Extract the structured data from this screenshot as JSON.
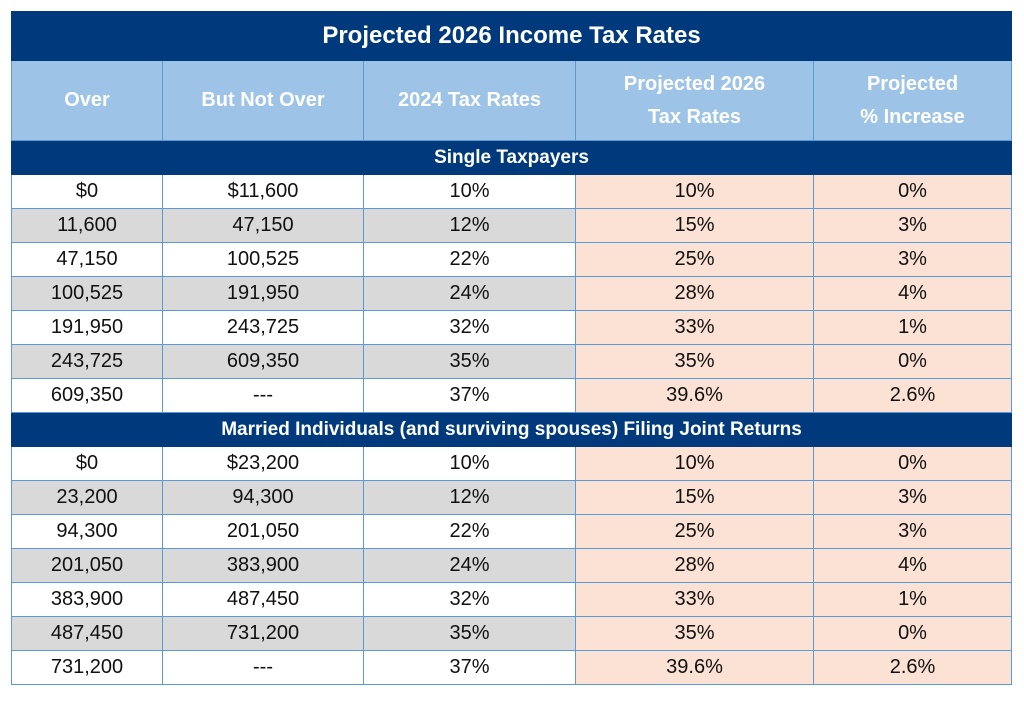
{
  "title": "Projected 2026 Income Tax Rates",
  "headers": [
    "Over",
    "But Not Over",
    "2024 Tax Rates",
    "Projected 2026\nTax Rates",
    "Projected\n% Increase"
  ],
  "colors": {
    "title_bg": "#003A7D",
    "header_bg": "#9DC3E6",
    "alt_row": "#D9D9D9",
    "projected_bg": "#FBE2D5",
    "border": "#5B9BD5"
  },
  "sections": [
    {
      "label": "Single Taxpayers",
      "rows": [
        [
          "$0",
          "$11,600",
          "10%",
          "10%",
          "0%"
        ],
        [
          "11,600",
          "47,150",
          "12%",
          "15%",
          "3%"
        ],
        [
          "47,150",
          "100,525",
          "22%",
          "25%",
          "3%"
        ],
        [
          "100,525",
          "191,950",
          "24%",
          "28%",
          "4%"
        ],
        [
          "191,950",
          "243,725",
          "32%",
          "33%",
          "1%"
        ],
        [
          "243,725",
          "609,350",
          "35%",
          "35%",
          "0%"
        ],
        [
          "609,350",
          "---",
          "37%",
          "39.6%",
          "2.6%"
        ]
      ]
    },
    {
      "label": "Married Individuals (and surviving spouses) Filing Joint Returns",
      "rows": [
        [
          "$0",
          "$23,200",
          "10%",
          "10%",
          "0%"
        ],
        [
          "23,200",
          "94,300",
          "12%",
          "15%",
          "3%"
        ],
        [
          "94,300",
          "201,050",
          "22%",
          "25%",
          "3%"
        ],
        [
          "201,050",
          "383,900",
          "24%",
          "28%",
          "4%"
        ],
        [
          "383,900",
          "487,450",
          "32%",
          "33%",
          "1%"
        ],
        [
          "487,450",
          "731,200",
          "35%",
          "35%",
          "0%"
        ],
        [
          "731,200",
          "---",
          "37%",
          "39.6%",
          "2.6%"
        ]
      ]
    }
  ]
}
